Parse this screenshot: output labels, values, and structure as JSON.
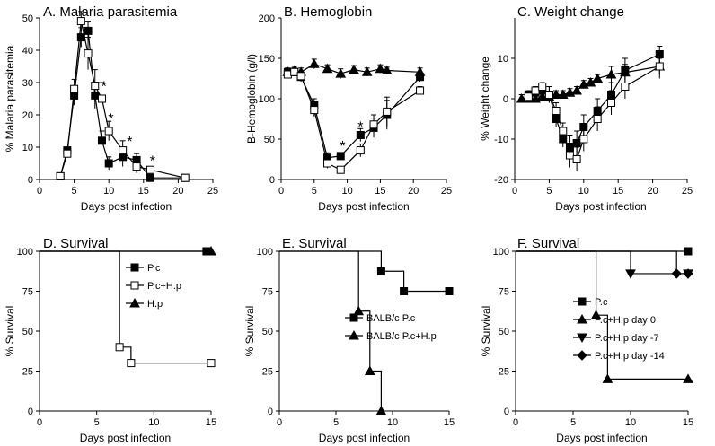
{
  "chart_data": [
    {
      "id": "A",
      "type": "line",
      "title": "A. Malaria parasitemia",
      "xlabel": "Days post infection",
      "ylabel": "% Malaria parasitemia",
      "xlim": [
        0,
        25
      ],
      "ylim": [
        0,
        50
      ],
      "xticks": [
        0,
        5,
        10,
        15,
        20,
        25
      ],
      "yticks": [
        0,
        10,
        20,
        30,
        40,
        50
      ],
      "grid": false,
      "legend": null,
      "series": [
        {
          "marker": "square-filled",
          "x": [
            3,
            4,
            5,
            6,
            7,
            8,
            9,
            10,
            12,
            14,
            16,
            21
          ],
          "y": [
            1,
            9,
            26,
            44,
            46,
            26,
            12,
            5,
            7,
            6,
            0.5,
            0.5
          ],
          "err": [
            1,
            1,
            3,
            3,
            3,
            4,
            3,
            2,
            3,
            2,
            1,
            1
          ]
        },
        {
          "marker": "square-open",
          "x": [
            3,
            4,
            5,
            6,
            7,
            8,
            9,
            10,
            12,
            14,
            16,
            21
          ],
          "y": [
            1,
            8,
            28,
            49,
            39,
            29,
            25,
            15,
            9,
            4,
            3,
            0.5
          ],
          "err": [
            1,
            1,
            3,
            3,
            5,
            5,
            5,
            3,
            3,
            2,
            1,
            1
          ]
        }
      ],
      "annotations": [
        {
          "text": "*",
          "x": 9.3,
          "y": 29
        },
        {
          "text": "*",
          "x": 10.3,
          "y": 19
        },
        {
          "text": "*",
          "x": 13,
          "y": 12
        },
        {
          "text": "*",
          "x": 16.3,
          "y": 6
        }
      ]
    },
    {
      "id": "B",
      "type": "line",
      "title": "B. Hemoglobin",
      "xlabel": "Days post infection",
      "ylabel": "B-Hemoglobin (g/l)",
      "xlim": [
        0,
        25
      ],
      "ylim": [
        0,
        200
      ],
      "xticks": [
        0,
        5,
        10,
        15,
        20,
        25
      ],
      "yticks": [
        0,
        50,
        100,
        150,
        200
      ],
      "grid": false,
      "legend": null,
      "series": [
        {
          "marker": "triangle-filled",
          "x": [
            1,
            2,
            3,
            5,
            7,
            9,
            11,
            13,
            15,
            16,
            21
          ],
          "y": [
            133,
            135,
            133,
            143,
            137,
            131,
            136,
            133,
            137,
            135,
            133
          ],
          "err": [
            5,
            5,
            5,
            6,
            5,
            6,
            5,
            5,
            5,
            4,
            5
          ]
        },
        {
          "marker": "square-filled",
          "x": [
            1,
            2,
            3,
            5,
            7,
            9,
            12,
            14,
            16,
            21
          ],
          "y": [
            133,
            133,
            127,
            92,
            27,
            29,
            55,
            64,
            80,
            127
          ],
          "err": [
            5,
            5,
            6,
            8,
            6,
            4,
            8,
            12,
            18,
            6
          ]
        },
        {
          "marker": "square-open",
          "x": [
            1,
            2,
            3,
            5,
            7,
            9,
            12,
            14,
            16,
            21
          ],
          "y": [
            130,
            133,
            128,
            86,
            20,
            12,
            36,
            68,
            84,
            110
          ],
          "err": [
            5,
            5,
            6,
            8,
            6,
            3,
            8,
            12,
            18,
            5
          ]
        }
      ],
      "annotations": [
        {
          "text": "*",
          "x": 9.3,
          "y": 42
        },
        {
          "text": "*",
          "x": 12,
          "y": 66
        }
      ]
    },
    {
      "id": "C",
      "type": "line",
      "title": "C. Weight change",
      "xlabel": "Days post infection",
      "ylabel": "% Weight change",
      "xlim": [
        0,
        25
      ],
      "ylim": [
        -20,
        20
      ],
      "xticks": [
        0,
        5,
        10,
        15,
        20,
        25
      ],
      "yticks": [
        -20,
        -10,
        0,
        10
      ],
      "grid": false,
      "legend": null,
      "series": [
        {
          "marker": "triangle-filled",
          "x": [
            1,
            2,
            3,
            4,
            5,
            6,
            7,
            8,
            9,
            10,
            11,
            12,
            14,
            16,
            21
          ],
          "y": [
            0,
            0,
            0,
            0.5,
            0.5,
            1,
            1,
            1.5,
            2,
            3.5,
            4,
            5,
            6,
            6.5,
            8
          ],
          "err": [
            1,
            1,
            1,
            1,
            1,
            1,
            1,
            1,
            1,
            1,
            1,
            1,
            2,
            2,
            2
          ]
        },
        {
          "marker": "square-filled",
          "x": [
            2,
            3,
            4,
            5,
            6,
            7,
            8,
            9,
            10,
            12,
            14,
            16,
            21
          ],
          "y": [
            1,
            1.5,
            2,
            1,
            -5,
            -10,
            -12,
            -11,
            -7,
            -3,
            1,
            7,
            11
          ],
          "err": [
            1,
            1,
            1,
            2,
            2,
            2,
            3,
            3,
            3,
            3,
            3,
            3,
            2
          ]
        },
        {
          "marker": "square-open",
          "x": [
            2,
            3,
            4,
            5,
            6,
            7,
            8,
            9,
            10,
            12,
            14,
            16,
            21
          ],
          "y": [
            0.5,
            2,
            3,
            1,
            -3,
            -8,
            -14,
            -15,
            -10,
            -5,
            -1,
            3,
            8
          ],
          "err": [
            1,
            1,
            1,
            2,
            2,
            2,
            3,
            3,
            3,
            3,
            3,
            3,
            3
          ]
        }
      ],
      "annotations": []
    },
    {
      "id": "D",
      "type": "line",
      "title": "D. Survival",
      "xlabel": "Days post infection",
      "ylabel": "% Survival",
      "xlim": [
        0,
        15
      ],
      "ylim": [
        0,
        100
      ],
      "xticks": [
        0,
        5,
        10,
        15
      ],
      "yticks": [
        0,
        25,
        50,
        75,
        100
      ],
      "grid": false,
      "legend": "top-right",
      "series": [
        {
          "name": "P.c",
          "marker": "square-filled",
          "steps": [
            [
              0,
              100
            ],
            [
              14.6,
              100
            ]
          ],
          "points": [
            [
              14.6,
              100
            ]
          ]
        },
        {
          "name": "P.c+H.p",
          "marker": "square-open",
          "steps": [
            [
              0,
              100
            ],
            [
              7,
              100
            ],
            [
              7,
              40
            ],
            [
              8,
              40
            ],
            [
              8,
              30
            ],
            [
              15,
              30
            ]
          ],
          "points": [
            [
              7,
              40
            ],
            [
              8,
              30
            ],
            [
              15,
              30
            ]
          ]
        },
        {
          "name": "H.p",
          "marker": "triangle-filled",
          "steps": [
            [
              0,
              100
            ],
            [
              15,
              100
            ]
          ],
          "points": [
            [
              15,
              100
            ]
          ]
        }
      ]
    },
    {
      "id": "E",
      "type": "line",
      "title": "E. Survival",
      "xlabel": "Days post infection",
      "ylabel": "% Survival",
      "xlim": [
        0,
        15
      ],
      "ylim": [
        0,
        100
      ],
      "xticks": [
        0,
        5,
        10,
        15
      ],
      "yticks": [
        0,
        25,
        50,
        75,
        100
      ],
      "grid": false,
      "legend": "center-right",
      "series": [
        {
          "name": "BALB/c P.c",
          "marker": "square-filled",
          "steps": [
            [
              0,
              100
            ],
            [
              9,
              100
            ],
            [
              9,
              87.5
            ],
            [
              11,
              87.5
            ],
            [
              11,
              75
            ],
            [
              15,
              75
            ]
          ],
          "points": [
            [
              9,
              87.5
            ],
            [
              11,
              75
            ],
            [
              15,
              75
            ]
          ]
        },
        {
          "name": "BALB/c P.c+H.p",
          "marker": "triangle-filled",
          "steps": [
            [
              0,
              100
            ],
            [
              7,
              100
            ],
            [
              7,
              62.5
            ],
            [
              8,
              62.5
            ],
            [
              8,
              25
            ],
            [
              9,
              25
            ],
            [
              9,
              0
            ]
          ],
          "points": [
            [
              7,
              62.5
            ],
            [
              8,
              25
            ],
            [
              9,
              0
            ]
          ]
        }
      ]
    },
    {
      "id": "F",
      "type": "line",
      "title": "F. Survival",
      "xlabel": "Days post infection",
      "ylabel": "% Survival",
      "xlim": [
        0,
        15
      ],
      "ylim": [
        0,
        100
      ],
      "xticks": [
        0,
        5,
        10,
        15
      ],
      "yticks": [
        0,
        25,
        50,
        75,
        100
      ],
      "grid": false,
      "legend": "center-right",
      "series": [
        {
          "name": "P.c",
          "marker": "square-filled",
          "steps": [
            [
              0,
              100
            ],
            [
              15,
              100
            ]
          ],
          "points": [
            [
              15,
              100
            ]
          ]
        },
        {
          "name": "P.c+H.p day 0",
          "marker": "triangle-filled",
          "steps": [
            [
              0,
              100
            ],
            [
              7,
              100
            ],
            [
              7,
              60
            ],
            [
              8,
              60
            ],
            [
              8,
              20
            ],
            [
              15,
              20
            ]
          ],
          "points": [
            [
              7,
              60
            ],
            [
              8,
              20
            ],
            [
              15,
              20
            ]
          ]
        },
        {
          "name": "P.c+H.p day -7",
          "marker": "triangle-down-filled",
          "steps": [
            [
              0,
              100
            ],
            [
              10,
              100
            ],
            [
              10,
              86
            ],
            [
              15,
              86
            ]
          ],
          "points": [
            [
              10,
              86
            ],
            [
              15,
              86
            ]
          ]
        },
        {
          "name": "P.c+H.p day -14",
          "marker": "diamond-filled",
          "steps": [
            [
              0,
              100
            ],
            [
              14,
              100
            ],
            [
              14,
              86
            ],
            [
              15,
              86
            ]
          ],
          "points": [
            [
              14,
              86
            ],
            [
              15,
              86
            ]
          ]
        }
      ]
    }
  ]
}
